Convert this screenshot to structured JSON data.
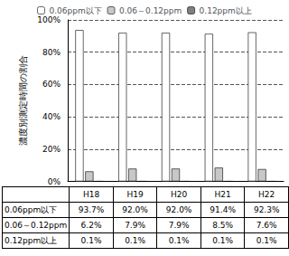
{
  "chart_data": {
    "type": "bar",
    "y_label": "濃度別測定時間の割合",
    "categories": [
      "H18",
      "H19",
      "H20",
      "H21",
      "H22"
    ],
    "series": [
      {
        "name": "0.06ppm以下",
        "color": "#ffffff",
        "values": [
          93.7,
          92.0,
          92.0,
          91.4,
          92.3
        ],
        "value_labels": [
          "93.7%",
          "92.0%",
          "92.0%",
          "91.4%",
          "92.3%"
        ]
      },
      {
        "name": "0.06～0.12ppm",
        "color": "#c8c8c8",
        "values": [
          6.2,
          7.9,
          7.9,
          8.5,
          7.6
        ],
        "value_labels": [
          "6.2%",
          "7.9%",
          "7.9%",
          "8.5%",
          "7.6%"
        ]
      },
      {
        "name": "0.12ppm以上",
        "color": "#7f7f7f",
        "values": [
          0.1,
          0.1,
          0.1,
          0.1,
          0.1
        ],
        "value_labels": [
          "0.1%",
          "0.1%",
          "0.1%",
          "0.1%",
          "0.1%"
        ]
      }
    ],
    "ylim": [
      0,
      100
    ],
    "yticks": [
      {
        "value": 0,
        "label": "0%"
      },
      {
        "value": 20,
        "label": "20%"
      },
      {
        "value": 40,
        "label": "40%"
      },
      {
        "value": 60,
        "label": "60%"
      },
      {
        "value": 80,
        "label": "80%"
      },
      {
        "value": 100,
        "label": "100%"
      }
    ],
    "grid": true,
    "legend": "top"
  }
}
